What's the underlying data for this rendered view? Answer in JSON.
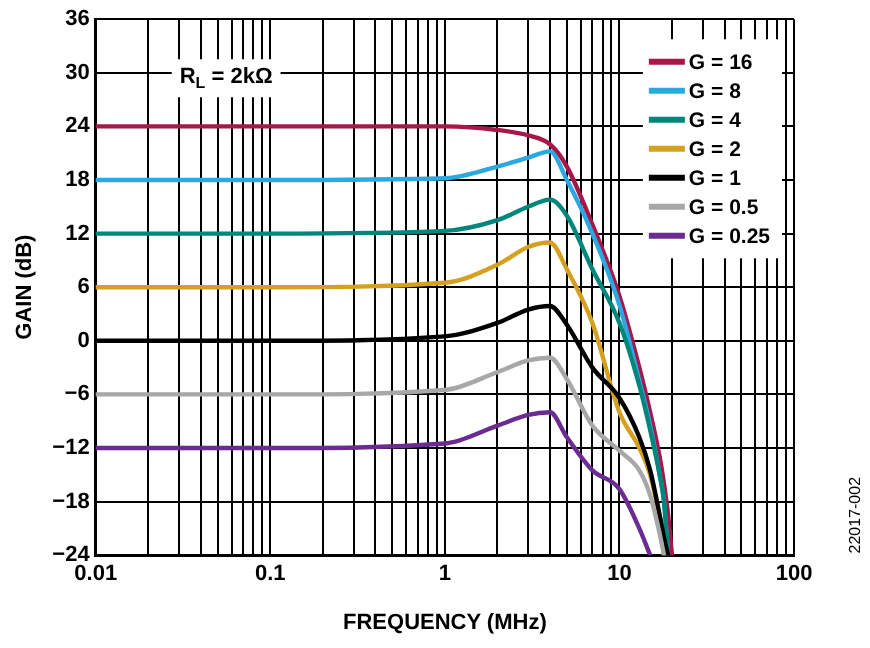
{
  "chart_data": {
    "type": "line",
    "xlabel": "FREQUENCY (MHz)",
    "ylabel": "GAIN (dB)",
    "log": "x",
    "grid": true,
    "legend": "top right",
    "marker": "none",
    "line_style": "solid",
    "annotations": [
      "R$_{L}$ = 2kΩ",
      "22017-002"
    ],
    "x": [
      0.01,
      0.1,
      1,
      2,
      3,
      4,
      5,
      7,
      10,
      13,
      15,
      17,
      18,
      19,
      20
    ],
    "xlim": [
      0.01,
      100
    ],
    "xticks": [
      0.01,
      {
        "value": 0.02,
        "label": null
      },
      {
        "value": 0.03,
        "label": null
      },
      {
        "value": 0.04,
        "label": null
      },
      {
        "value": 0.05,
        "label": null
      },
      {
        "value": 0.06,
        "label": null
      },
      {
        "value": 0.07,
        "label": null
      },
      {
        "value": 0.08,
        "label": null
      },
      {
        "value": 0.09,
        "label": null
      },
      0.1,
      {
        "value": 0.2,
        "label": null
      },
      {
        "value": 0.3,
        "label": null
      },
      {
        "value": 0.4,
        "label": null
      },
      {
        "value": 0.5,
        "label": null
      },
      {
        "value": 0.6,
        "label": null
      },
      {
        "value": 0.7,
        "label": null
      },
      {
        "value": 0.8,
        "label": null
      },
      {
        "value": 0.9,
        "label": null
      },
      1,
      {
        "value": 2,
        "label": null
      },
      {
        "value": 3,
        "label": null
      },
      {
        "value": 4,
        "label": null
      },
      {
        "value": 5,
        "label": null
      },
      {
        "value": 6,
        "label": null
      },
      {
        "value": 7,
        "label": null
      },
      {
        "value": 8,
        "label": null
      },
      {
        "value": 9,
        "label": null
      },
      10,
      {
        "value": 20,
        "label": null
      },
      {
        "value": 30,
        "label": null
      },
      {
        "value": 40,
        "label": null
      },
      {
        "value": 50,
        "label": null
      },
      {
        "value": 60,
        "label": null
      },
      {
        "value": 70,
        "label": null
      },
      {
        "value": 80,
        "label": null
      },
      {
        "value": 90,
        "label": null
      },
      100
    ],
    "ylim": [
      -24,
      36
    ],
    "yticks": [
      -24,
      -18,
      -12,
      -6,
      0,
      6,
      12,
      18,
      24,
      30,
      36
    ],
    "series": [
      {
        "name": "G = 16",
        "color": "#a8174a",
        "values": [
          24,
          24,
          24,
          23.6,
          23,
          22,
          19.5,
          13,
          5,
          -3,
          -8,
          -13,
          -16,
          -19.5,
          -24
        ]
      },
      {
        "name": "G = 8",
        "color": "#2ba8df",
        "values": [
          18,
          18,
          18.2,
          19.5,
          20.5,
          21.2,
          18,
          12,
          4,
          -4.5,
          -9.5,
          -15,
          -18,
          -24,
          null
        ]
      },
      {
        "name": "G = 4",
        "color": "#00867a",
        "values": [
          12,
          12,
          12.3,
          13.5,
          15,
          15.8,
          14,
          8,
          2,
          -5,
          -10,
          -15,
          -18,
          -24,
          null
        ]
      },
      {
        "name": "G = 2",
        "color": "#d4a020",
        "values": [
          6,
          6,
          6.5,
          8.5,
          10.5,
          11,
          8,
          2,
          -8,
          -12,
          -15,
          -20,
          -24,
          null,
          null
        ]
      },
      {
        "name": "G = 1",
        "color": "#000000",
        "values": [
          0,
          0,
          0.5,
          2,
          3.5,
          3.9,
          1.8,
          -3,
          -6.4,
          -10.8,
          -14.5,
          -19.5,
          -22,
          -24,
          null
        ]
      },
      {
        "name": "G = 0.5",
        "color": "#a7a7a7",
        "values": [
          -6,
          -6,
          -5.5,
          -3.5,
          -2.2,
          -1.9,
          -4.3,
          -9.5,
          -12.3,
          -14.5,
          -17.3,
          -21.6,
          -24,
          null,
          null
        ]
      },
      {
        "name": "G = 0.25",
        "color": "#6a2c91",
        "values": [
          -12,
          -12,
          -11.5,
          -9.5,
          -8.3,
          -8,
          -10.8,
          -14.5,
          -16.6,
          -21,
          -24,
          null,
          null,
          null,
          null
        ]
      }
    ]
  }
}
